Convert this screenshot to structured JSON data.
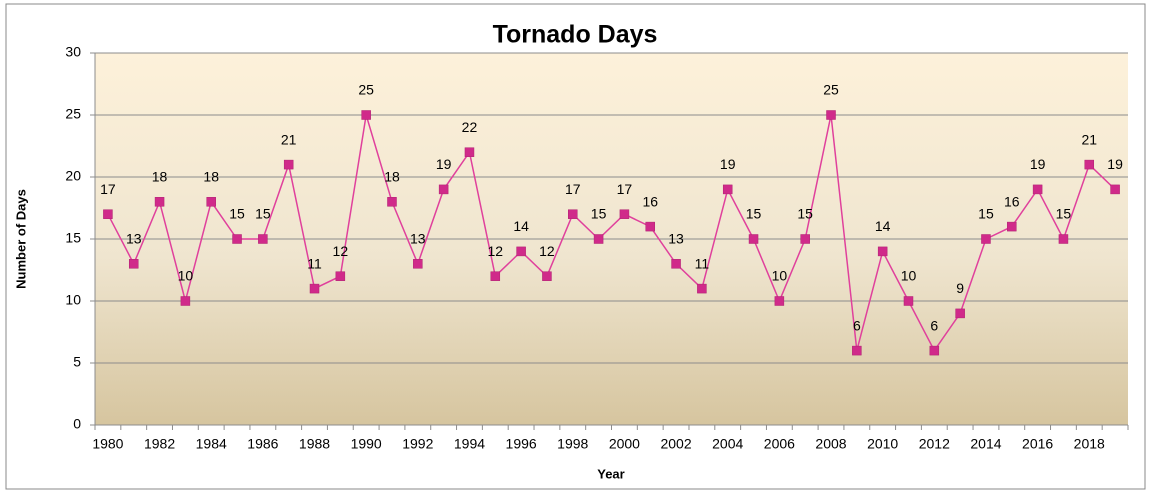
{
  "chart_data": {
    "type": "line",
    "title": "Tornado Days",
    "x_label": "Year",
    "y_label": "Number of Days",
    "categories": [
      "1980",
      null,
      "1982",
      null,
      "1984",
      null,
      "1986",
      null,
      "1988",
      null,
      "1990",
      null,
      "1992",
      null,
      "1994",
      null,
      "1996",
      null,
      "1998",
      null,
      "2000",
      null,
      "2002",
      null,
      "2004",
      null,
      "2006",
      null,
      "2008",
      null,
      "2010",
      null,
      "2012",
      null,
      "2014",
      null,
      "2016",
      null,
      "2018",
      null
    ],
    "series": [
      {
        "name": "Tornado Days",
        "color": "#e0409c",
        "marker_color": "#d02a8a",
        "values": [
          17,
          13,
          18,
          10,
          18,
          15,
          15,
          21,
          11,
          12,
          25,
          18,
          13,
          19,
          22,
          12,
          14,
          12,
          17,
          15,
          17,
          16,
          13,
          11,
          19,
          15,
          10,
          15,
          25,
          6,
          14,
          10,
          6,
          9,
          15,
          16,
          19,
          15,
          21,
          19
        ]
      }
    ],
    "ylim": [
      0,
      30
    ],
    "yticks": [
      0,
      5,
      10,
      15,
      20,
      25,
      30
    ],
    "grid": true
  }
}
